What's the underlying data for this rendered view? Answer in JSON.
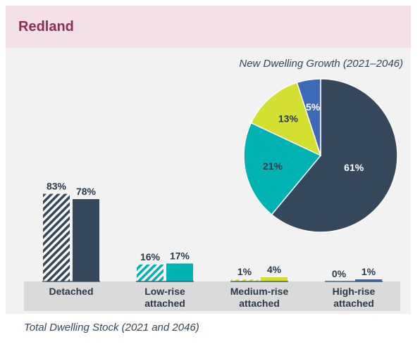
{
  "header": {
    "title": "Redland"
  },
  "colors": {
    "header_bg": "#f4e1e8",
    "title": "#8c2e55",
    "navy": "#35475a",
    "teal": "#00b3b3",
    "lime": "#d3e02f",
    "blue": "#3d6bb8"
  },
  "chart_data": [
    {
      "type": "pie",
      "title": "New Dwelling Growth (2021–2046)",
      "slices": [
        {
          "value": 61,
          "label": "61%",
          "color": "#35475a"
        },
        {
          "value": 21,
          "label": "21%",
          "color": "#00b3b3"
        },
        {
          "value": 13,
          "label": "13%",
          "color": "#d3e02f"
        },
        {
          "value": 5,
          "label": "5%",
          "color": "#3d6bb8"
        }
      ]
    },
    {
      "type": "bar",
      "title": "Total Dwelling Stock (2021 and 2046)",
      "categories": [
        [
          "Detached"
        ],
        [
          "Low-rise",
          "attached"
        ],
        [
          "Medium-rise",
          "attached"
        ],
        [
          "High-rise",
          "attached"
        ]
      ],
      "series": [
        {
          "values": [
            83,
            16,
            1,
            0
          ],
          "labels": [
            "83%",
            "16%",
            "1%",
            "0%"
          ],
          "pattern": "hatched"
        },
        {
          "values": [
            78,
            17,
            4,
            1
          ],
          "labels": [
            "78%",
            "17%",
            "4%",
            "1%"
          ],
          "pattern": "solid"
        }
      ],
      "colors": [
        "#35475a",
        "#00b3b3",
        "#d3e02f",
        "#3d6bb8"
      ],
      "ylim": [
        0,
        100
      ]
    }
  ]
}
